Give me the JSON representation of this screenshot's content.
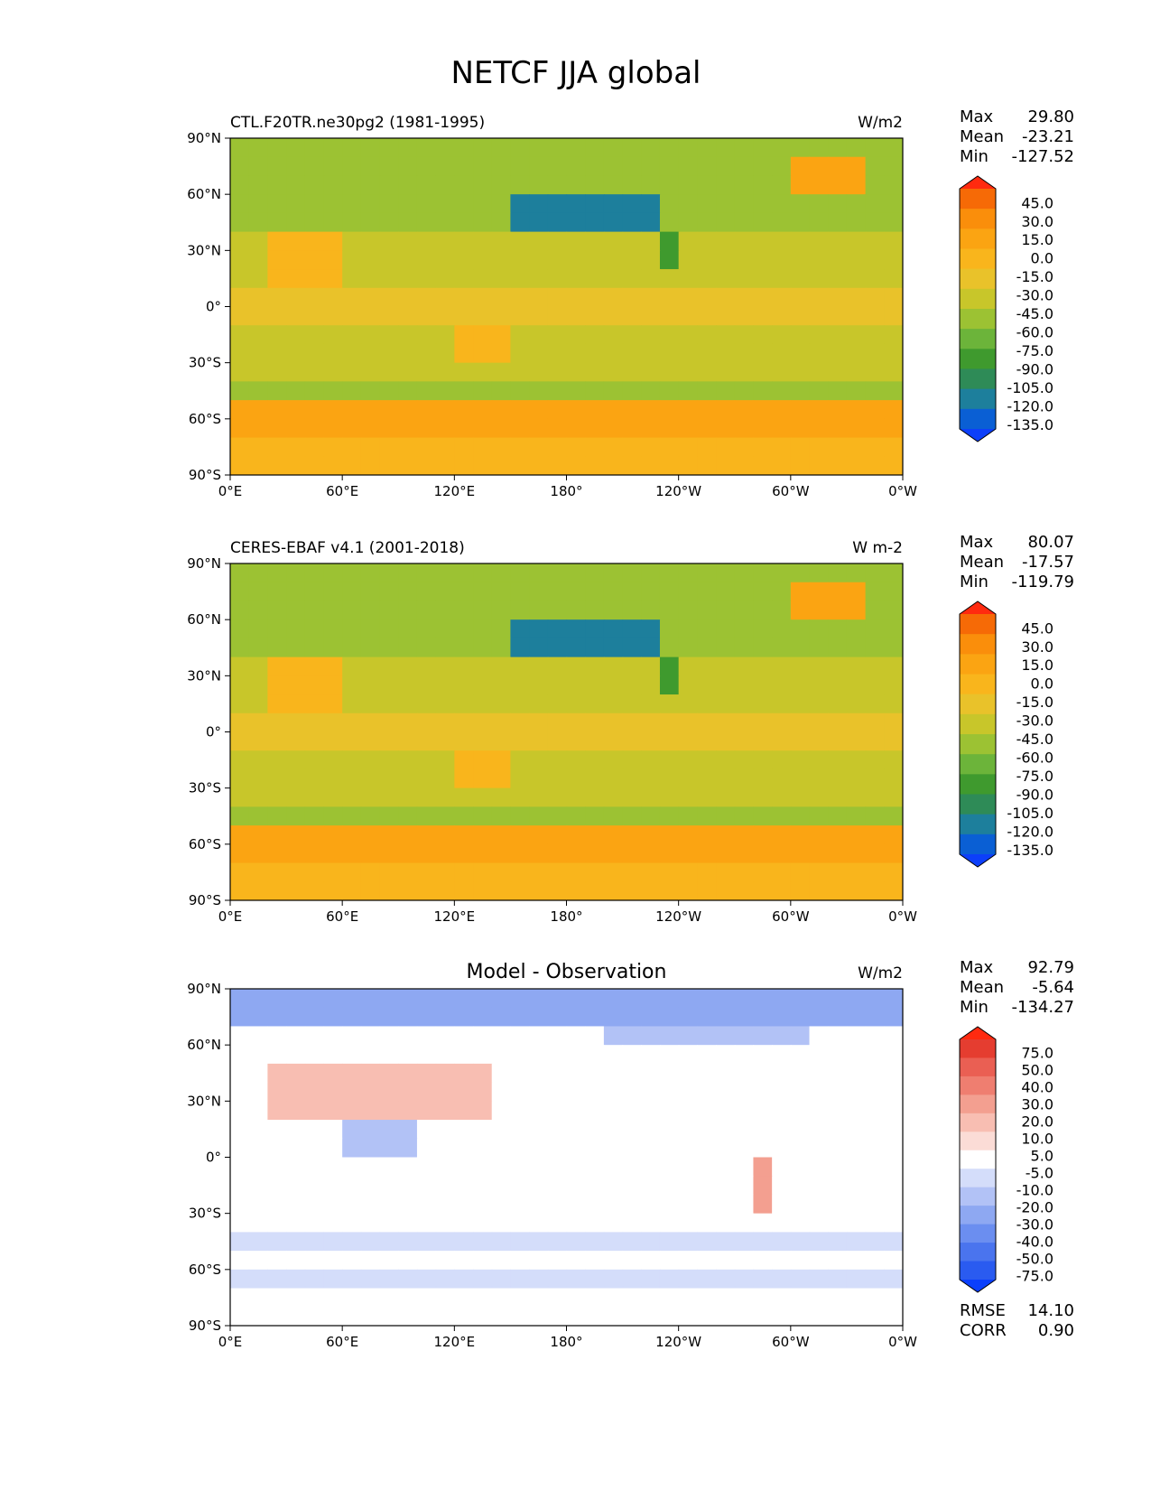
{
  "title": "NETCF JJA global",
  "x_ticks": [
    "0°E",
    "60°E",
    "120°E",
    "180°",
    "120°W",
    "60°W",
    "0°W"
  ],
  "y_ticks": [
    "90°N",
    "60°N",
    "30°N",
    "0°",
    "30°S",
    "60°S",
    "90°S"
  ],
  "stat_labels": {
    "max": "Max",
    "mean": "Mean",
    "min": "Min",
    "rmse": "RMSE",
    "corr": "CORR"
  },
  "colors": {
    "abs_levels": [
      "#0c3ffa",
      "#0a5fd4",
      "#1d7f9c",
      "#2e8b57",
      "#3f9a2e",
      "#6cb43a",
      "#9cc233",
      "#c8c62a",
      "#e9c22a",
      "#f9b51c",
      "#fba412",
      "#fa8e0b",
      "#f66a06",
      "#ff2a0f"
    ],
    "diff_levels": [
      "#0a3ffc",
      "#2a5bf0",
      "#4a74ee",
      "#6b8ef0",
      "#8ea8f2",
      "#b2c2f6",
      "#d4ddfa",
      "#ffffff",
      "#fbdcd6",
      "#f8beb2",
      "#f39f90",
      "#ef7e70",
      "#ea5f53",
      "#e53d30",
      "#ff2a10"
    ]
  },
  "chart_data": [
    {
      "type": "heatmap",
      "panel": "top",
      "title": "CTL.F20TR.ne30pg2 (1981-1995)",
      "units": "W/m2",
      "xlim": [
        0,
        360
      ],
      "ylim": [
        -90,
        90
      ],
      "stats": {
        "max": "29.80",
        "mean": "-23.21",
        "min": "-127.52"
      },
      "colorbar": {
        "levels": [
          "45.0",
          "30.0",
          "15.0",
          "0.0",
          "-15.0",
          "-30.0",
          "-45.0",
          "-60.0",
          "-75.0",
          "-90.0",
          "-105.0",
          "-120.0",
          "-135.0"
        ],
        "extend": "both"
      }
    },
    {
      "type": "heatmap",
      "panel": "middle",
      "title": "CERES-EBAF v4.1 (2001-2018)",
      "units": "W m-2",
      "xlim": [
        0,
        360
      ],
      "ylim": [
        -90,
        90
      ],
      "stats": {
        "max": "80.07",
        "mean": "-17.57",
        "min": "-119.79"
      },
      "colorbar": {
        "levels": [
          "45.0",
          "30.0",
          "15.0",
          "0.0",
          "-15.0",
          "-30.0",
          "-45.0",
          "-60.0",
          "-75.0",
          "-90.0",
          "-105.0",
          "-120.0",
          "-135.0"
        ],
        "extend": "both"
      }
    },
    {
      "type": "heatmap",
      "panel": "bottom",
      "title": "Model - Observation",
      "units": "W/m2",
      "xlim": [
        0,
        360
      ],
      "ylim": [
        -90,
        90
      ],
      "stats": {
        "max": "92.79",
        "mean": "-5.64",
        "min": "-134.27",
        "rmse": "14.10",
        "corr": "0.90"
      },
      "colorbar": {
        "levels": [
          "75.0",
          "50.0",
          "40.0",
          "30.0",
          "20.0",
          "10.0",
          "5.0",
          "-5.0",
          "-10.0",
          "-20.0",
          "-30.0",
          "-40.0",
          "-50.0",
          "-75.0"
        ],
        "extend": "both"
      }
    }
  ]
}
